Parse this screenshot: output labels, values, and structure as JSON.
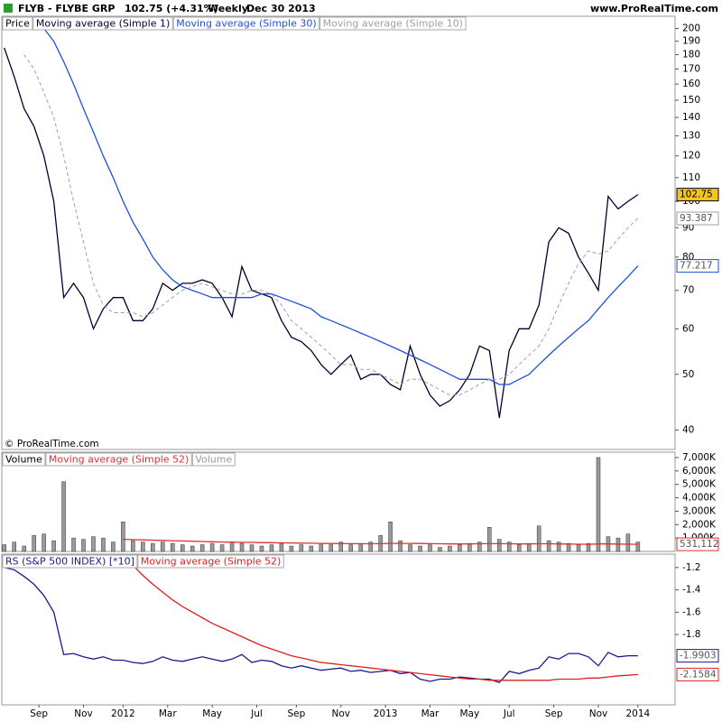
{
  "page_header": {
    "symbol": "FLYB - FLYBE GRP",
    "quote": "102.75 (+4.31%)",
    "period": "Weekly",
    "date": "Dec 30 2013",
    "site": "www.ProRealTime.com"
  },
  "chart_data": [
    {
      "type": "line",
      "label": "Price",
      "log_scale": true,
      "watermark": "© ProRealTime.com",
      "xlim": [
        -0.5,
        135.5
      ],
      "ylim": [
        37,
        210
      ],
      "yticks": [
        40,
        50,
        60,
        70,
        80,
        90,
        100,
        110,
        120,
        130,
        140,
        150,
        160,
        170,
        180,
        190,
        200
      ],
      "x": [
        0,
        2,
        4,
        6,
        8,
        10,
        12,
        14,
        16,
        18,
        20,
        22,
        24,
        26,
        28,
        30,
        32,
        34,
        36,
        38,
        40,
        42,
        44,
        46,
        48,
        50,
        52,
        54,
        56,
        58,
        60,
        62,
        64,
        66,
        68,
        70,
        72,
        74,
        76,
        78,
        80,
        82,
        84,
        86,
        88,
        90,
        92,
        94,
        96,
        98,
        100,
        102,
        104,
        106,
        108,
        110,
        112,
        114,
        116,
        118,
        120,
        122,
        124,
        126,
        128
      ],
      "series": [
        {
          "name": "Moving average (Simple 1)",
          "color": "#000033",
          "last_label": true,
          "label_fill": "#f5c518",
          "values": [
            185,
            165,
            145,
            135,
            120,
            100,
            68,
            72,
            68,
            60,
            65,
            68,
            68,
            62,
            62,
            65,
            72,
            70,
            72,
            72,
            73,
            72,
            68,
            63,
            77,
            70,
            69,
            68,
            62,
            58,
            57,
            55,
            52,
            50,
            52,
            54,
            49,
            50,
            50,
            48,
            47,
            56,
            50,
            46,
            44,
            45,
            47,
            50,
            56,
            55,
            42,
            55,
            60,
            60,
            66,
            85,
            90,
            88,
            80,
            75,
            70,
            102,
            97,
            100,
            102.75
          ]
        },
        {
          "name": "Moving average (Simple 30)",
          "color": "#1f4fe0",
          "last_label": true,
          "label_fill": "#ffffff",
          "values": [
            null,
            null,
            null,
            null,
            200,
            190,
            175,
            160,
            145,
            132,
            120,
            110,
            100,
            92,
            86,
            80,
            76,
            73,
            71,
            70,
            69,
            68,
            68,
            68,
            68,
            68,
            69,
            69,
            68,
            67,
            66,
            65,
            63,
            62,
            61,
            60,
            59,
            58,
            57,
            56,
            55,
            54,
            53,
            52,
            51,
            50,
            49,
            49,
            49,
            49,
            48,
            48,
            49,
            50,
            52,
            54,
            56,
            58,
            60,
            62,
            65,
            68,
            71,
            74,
            77.217
          ]
        },
        {
          "name": "Moving average (Simple 10)",
          "color": "#a0a0a0",
          "dashed": true,
          "last_label": true,
          "label_fill": "#ffffff",
          "values": [
            null,
            null,
            180,
            170,
            155,
            140,
            120,
            100,
            85,
            72,
            66,
            64,
            64,
            64,
            63,
            64,
            66,
            68,
            70,
            71,
            72,
            71,
            70,
            69,
            69,
            70,
            70,
            69,
            66,
            62,
            60,
            58,
            56,
            54,
            52,
            52,
            51,
            51,
            50,
            49,
            48,
            49,
            49,
            48,
            47,
            46,
            46,
            47,
            48,
            49,
            49,
            50,
            52,
            54,
            56,
            60,
            66,
            72,
            78,
            82,
            81,
            82,
            86,
            90,
            93.387
          ]
        }
      ]
    },
    {
      "type": "bar",
      "label": "Volume",
      "xlim": [
        -0.5,
        135.5
      ],
      "ylim": [
        0,
        7400
      ],
      "yticks": [
        {
          "value": 1000,
          "label": "1,000K"
        },
        {
          "value": 2000,
          "label": "2,000K"
        },
        {
          "value": 3000,
          "label": "3,000K"
        },
        {
          "value": 4000,
          "label": "4,000K"
        },
        {
          "value": 5000,
          "label": "5,000K"
        },
        {
          "value": 6000,
          "label": "6,000K"
        },
        {
          "value": 7000,
          "label": "7,000K"
        }
      ],
      "x": [
        0,
        2,
        4,
        6,
        8,
        10,
        12,
        14,
        16,
        18,
        20,
        22,
        24,
        26,
        28,
        30,
        32,
        34,
        36,
        38,
        40,
        42,
        44,
        46,
        48,
        50,
        52,
        54,
        56,
        58,
        60,
        62,
        64,
        66,
        68,
        70,
        72,
        74,
        76,
        78,
        80,
        82,
        84,
        86,
        88,
        90,
        92,
        94,
        96,
        98,
        100,
        102,
        104,
        106,
        108,
        110,
        112,
        114,
        116,
        118,
        120,
        122,
        124,
        126,
        128
      ],
      "series": [
        {
          "name": "Moving average (Simple 52)",
          "color": "#e03030",
          "type": "line",
          "last_label": true,
          "label_fill": "#ffffff",
          "values": [
            null,
            null,
            null,
            null,
            null,
            null,
            null,
            null,
            null,
            null,
            null,
            null,
            900,
            880,
            860,
            840,
            820,
            800,
            780,
            760,
            740,
            720,
            700,
            690,
            680,
            670,
            660,
            650,
            640,
            630,
            620,
            610,
            600,
            590,
            580,
            580,
            570,
            570,
            580,
            600,
            600,
            600,
            590,
            580,
            570,
            560,
            560,
            560,
            570,
            580,
            580,
            570,
            560,
            560,
            570,
            570,
            560,
            550,
            540,
            530,
            560,
            560,
            550,
            540,
            531.112
          ],
          "value_labels": [
            null,
            null,
            null,
            null,
            null,
            null,
            null,
            null,
            null,
            null,
            null,
            null,
            null,
            null,
            null,
            null,
            null,
            null,
            null,
            null,
            null,
            null,
            null,
            null,
            null,
            null,
            null,
            null,
            null,
            null,
            null,
            null,
            null,
            null,
            null,
            null,
            null,
            null,
            null,
            null,
            null,
            null,
            null,
            null,
            null,
            null,
            null,
            null,
            null,
            null,
            null,
            null,
            null,
            null,
            null,
            null,
            null,
            null,
            null,
            null,
            null,
            null,
            null,
            null,
            "531,112"
          ]
        },
        {
          "name": "Volume",
          "color": "#9a9a9a",
          "type": "bar",
          "values": [
            500,
            700,
            400,
            1200,
            1300,
            800,
            5200,
            1000,
            900,
            1100,
            1000,
            700,
            2200,
            800,
            700,
            600,
            700,
            600,
            500,
            400,
            500,
            600,
            500,
            700,
            600,
            500,
            400,
            500,
            600,
            400,
            500,
            400,
            600,
            500,
            700,
            500,
            600,
            700,
            1200,
            2200,
            800,
            500,
            400,
            500,
            300,
            400,
            500,
            600,
            700,
            1800,
            900,
            700,
            500,
            600,
            1900,
            800,
            700,
            600,
            500,
            600,
            7000,
            1100,
            1000,
            1300,
            700
          ]
        }
      ]
    },
    {
      "type": "line",
      "xlim": [
        -0.5,
        135.5
      ],
      "ylim": [
        -2.43,
        -1.08
      ],
      "yticks": [
        -1.2,
        -1.4,
        -1.6,
        -1.8
      ],
      "xticks": [
        {
          "value": 7,
          "label": "Sep"
        },
        {
          "value": 16,
          "label": "Nov"
        },
        {
          "value": 24,
          "label": "2012"
        },
        {
          "value": 33,
          "label": "Mar"
        },
        {
          "value": 42,
          "label": "May"
        },
        {
          "value": 51,
          "label": "Jul"
        },
        {
          "value": 59,
          "label": "Sep"
        },
        {
          "value": 68,
          "label": "Nov"
        },
        {
          "value": 77,
          "label": "2013"
        },
        {
          "value": 86,
          "label": "Mar"
        },
        {
          "value": 94,
          "label": "May"
        },
        {
          "value": 102,
          "label": "Jul"
        },
        {
          "value": 111,
          "label": "Sep"
        },
        {
          "value": 120,
          "label": "Nov"
        },
        {
          "value": 128,
          "label": "2014"
        }
      ],
      "x": [
        0,
        2,
        4,
        6,
        8,
        10,
        12,
        14,
        16,
        18,
        20,
        22,
        24,
        26,
        28,
        30,
        32,
        34,
        36,
        38,
        40,
        42,
        44,
        46,
        48,
        50,
        52,
        54,
        56,
        58,
        60,
        62,
        64,
        66,
        68,
        70,
        72,
        74,
        76,
        78,
        80,
        82,
        84,
        86,
        88,
        90,
        92,
        94,
        96,
        98,
        100,
        102,
        104,
        106,
        108,
        110,
        112,
        114,
        116,
        118,
        120,
        122,
        124,
        126,
        128
      ],
      "series": [
        {
          "name": "RS (S&P 500 INDEX) [*10]",
          "color": "#1a1a8c",
          "last_label": true,
          "label_fill": "#ffffff",
          "values": [
            -1.2,
            -1.22,
            -1.28,
            -1.35,
            -1.45,
            -1.6,
            -1.98,
            -1.97,
            -2.0,
            -2.02,
            -2.0,
            -2.03,
            -2.03,
            -2.05,
            -2.06,
            -2.04,
            -2.0,
            -2.03,
            -2.04,
            -2.02,
            -2.0,
            -2.02,
            -2.04,
            -2.02,
            -1.98,
            -2.05,
            -2.03,
            -2.04,
            -2.08,
            -2.1,
            -2.08,
            -2.1,
            -2.12,
            -2.11,
            -2.1,
            -2.13,
            -2.12,
            -2.14,
            -2.13,
            -2.12,
            -2.15,
            -2.14,
            -2.2,
            -2.22,
            -2.2,
            -2.2,
            -2.18,
            -2.19,
            -2.2,
            -2.2,
            -2.23,
            -2.13,
            -2.15,
            -2.12,
            -2.1,
            -2.0,
            -2.02,
            -1.97,
            -1.97,
            -2.0,
            -2.08,
            -1.96,
            -2.0,
            -1.99,
            -1.9903
          ]
        },
        {
          "name": "Moving average (Simple 52)",
          "color": "#e02020",
          "last_label": true,
          "label_fill": "#ffffff",
          "values": [
            null,
            null,
            null,
            null,
            null,
            null,
            null,
            null,
            null,
            null,
            null,
            null,
            -1.1,
            -1.18,
            -1.27,
            -1.35,
            -1.42,
            -1.49,
            -1.55,
            -1.6,
            -1.65,
            -1.7,
            -1.74,
            -1.78,
            -1.82,
            -1.86,
            -1.9,
            -1.93,
            -1.96,
            -1.99,
            -2.01,
            -2.03,
            -2.05,
            -2.06,
            -2.07,
            -2.08,
            -2.09,
            -2.1,
            -2.11,
            -2.12,
            -2.13,
            -2.14,
            -2.15,
            -2.16,
            -2.17,
            -2.18,
            -2.19,
            -2.2,
            -2.2,
            -2.21,
            -2.21,
            -2.21,
            -2.21,
            -2.21,
            -2.21,
            -2.21,
            -2.2,
            -2.2,
            -2.2,
            -2.19,
            -2.19,
            -2.18,
            -2.17,
            -2.165,
            -2.1584
          ]
        }
      ]
    }
  ]
}
